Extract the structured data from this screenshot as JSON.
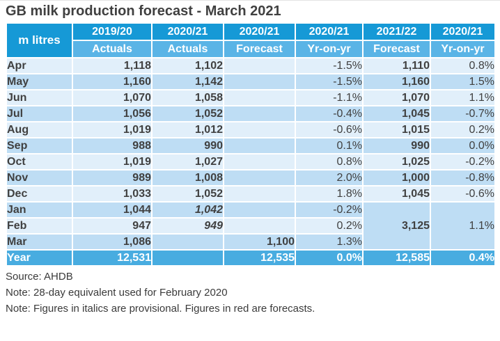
{
  "title": "GB milk production forecast - March 2021",
  "colors": {
    "header_blue": "#1699D6",
    "subheader_blue": "#5AB4E6",
    "year_row_blue": "#48ACE0",
    "row_light": "#E1EFFA",
    "row_medium": "#BEDDF4",
    "forecast_red": "#EE0000",
    "text_dark": "#404040"
  },
  "table": {
    "corner_label": "m litres",
    "columns": [
      {
        "year": "2019/20",
        "type": "Actuals"
      },
      {
        "year": "2020/21",
        "type": "Actuals"
      },
      {
        "year": "2020/21",
        "type": "Forecast"
      },
      {
        "year": "2020/21",
        "type": "Yr-on-yr"
      },
      {
        "year": "2021/22",
        "type": "Forecast"
      },
      {
        "year": "2020/21",
        "type": "Yr-on-yr"
      }
    ],
    "rows": [
      {
        "month": "Apr",
        "cells": [
          {
            "t": "1,118"
          },
          {
            "t": "1,102"
          },
          {
            "t": ""
          },
          {
            "t": "-1.5%",
            "pct": true
          },
          {
            "t": "1,110",
            "red": true
          },
          {
            "t": "0.8%",
            "pct": true
          }
        ]
      },
      {
        "month": "May",
        "cells": [
          {
            "t": "1,160"
          },
          {
            "t": "1,142"
          },
          {
            "t": ""
          },
          {
            "t": "-1.5%",
            "pct": true
          },
          {
            "t": "1,160",
            "red": true
          },
          {
            "t": "1.5%",
            "pct": true
          }
        ]
      },
      {
        "month": "Jun",
        "cells": [
          {
            "t": "1,070"
          },
          {
            "t": "1,058"
          },
          {
            "t": ""
          },
          {
            "t": "-1.1%",
            "pct": true
          },
          {
            "t": "1,070",
            "red": true
          },
          {
            "t": "1.1%",
            "pct": true
          }
        ]
      },
      {
        "month": "Jul",
        "cells": [
          {
            "t": "1,056"
          },
          {
            "t": "1,052"
          },
          {
            "t": ""
          },
          {
            "t": "-0.4%",
            "pct": true
          },
          {
            "t": "1,045",
            "red": true
          },
          {
            "t": "-0.7%",
            "pct": true
          }
        ]
      },
      {
        "month": "Aug",
        "cells": [
          {
            "t": "1,019"
          },
          {
            "t": "1,012"
          },
          {
            "t": ""
          },
          {
            "t": "-0.6%",
            "pct": true
          },
          {
            "t": "1,015",
            "red": true
          },
          {
            "t": "0.2%",
            "pct": true
          }
        ]
      },
      {
        "month": "Sep",
        "cells": [
          {
            "t": "988"
          },
          {
            "t": "990"
          },
          {
            "t": ""
          },
          {
            "t": "0.1%",
            "pct": true
          },
          {
            "t": "990",
            "red": true
          },
          {
            "t": "0.0%",
            "pct": true
          }
        ]
      },
      {
        "month": "Oct",
        "cells": [
          {
            "t": "1,019"
          },
          {
            "t": "1,027"
          },
          {
            "t": ""
          },
          {
            "t": "0.8%",
            "pct": true
          },
          {
            "t": "1,025",
            "red": true
          },
          {
            "t": "-0.2%",
            "pct": true
          }
        ]
      },
      {
        "month": "Nov",
        "cells": [
          {
            "t": "989"
          },
          {
            "t": "1,008"
          },
          {
            "t": ""
          },
          {
            "t": "2.0%",
            "pct": true
          },
          {
            "t": "1,000",
            "red": true
          },
          {
            "t": "-0.8%",
            "pct": true
          }
        ]
      },
      {
        "month": "Dec",
        "cells": [
          {
            "t": "1,033"
          },
          {
            "t": "1,052"
          },
          {
            "t": ""
          },
          {
            "t": "1.8%",
            "pct": true
          },
          {
            "t": "1,045",
            "red": true
          },
          {
            "t": "-0.6%",
            "pct": true
          }
        ]
      },
      {
        "month": "Jan",
        "cells": [
          {
            "t": "1,044"
          },
          {
            "t": "1,042",
            "italic": true
          },
          {
            "t": ""
          },
          {
            "t": "-0.2%",
            "pct": true
          },
          {
            "t": "3,125",
            "red": true,
            "rowspan": 3,
            "merged": true
          },
          {
            "t": "1.1%",
            "pct": true,
            "rowspan": 3,
            "merged": true
          }
        ]
      },
      {
        "month": "Feb",
        "cells": [
          {
            "t": "947"
          },
          {
            "t": "949",
            "italic": true
          },
          {
            "t": ""
          },
          {
            "t": "0.2%",
            "pct": true
          },
          {
            "skip": true
          },
          {
            "skip": true
          }
        ]
      },
      {
        "month": "Mar",
        "cells": [
          {
            "t": "1,086"
          },
          {
            "t": ""
          },
          {
            "t": "1,100",
            "red": true
          },
          {
            "t": "1.3%",
            "pct": true
          },
          {
            "skip": true
          },
          {
            "skip": true
          }
        ]
      },
      {
        "month": "Year",
        "year_row": true,
        "cells": [
          {
            "t": "12,531"
          },
          {
            "t": ""
          },
          {
            "t": "12,535"
          },
          {
            "t": "0.0%",
            "pct": true
          },
          {
            "t": "12,585"
          },
          {
            "t": "0.4%",
            "pct": true
          }
        ]
      }
    ]
  },
  "notes": [
    "Source: AHDB",
    "Note: 28-day equivalent used for February 2020",
    "Note: Figures in italics are provisional. Figures in red are forecasts."
  ]
}
